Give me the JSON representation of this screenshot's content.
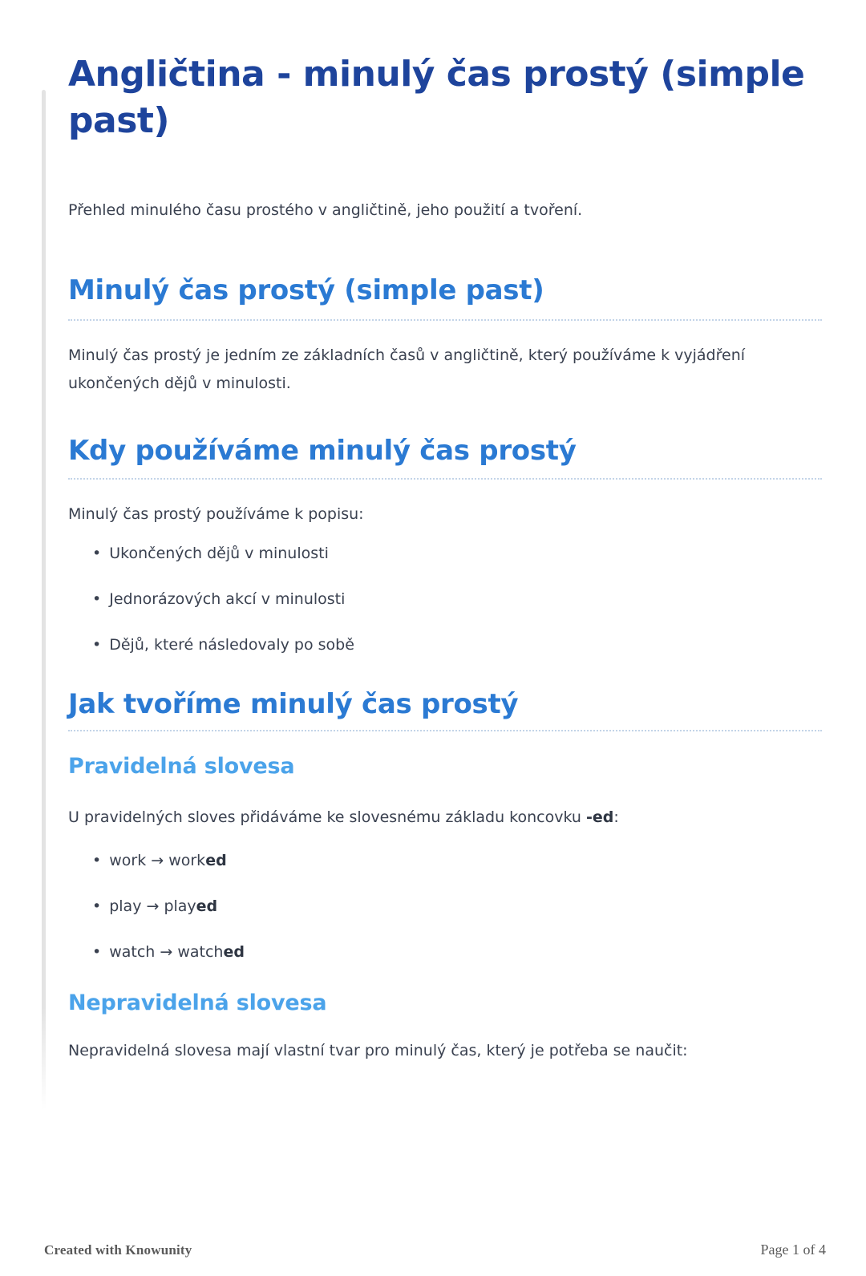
{
  "document": {
    "title": "Angličtina - minulý čas prostý (simple past)",
    "intro": "Přehled minulého času prostého v angličtině, jeho použití a tvoření."
  },
  "section1": {
    "heading": "Minulý čas prostý (simple past)",
    "body": "Minulý čas prostý je jedním ze základních časů v angličtině, který používáme k vyjádření ukončených dějů v minulosti."
  },
  "section2": {
    "heading": "Kdy používáme minulý čas prostý",
    "body": "Minulý čas prostý používáme k popisu:",
    "bullets": [
      "Ukončených dějů v minulosti",
      "Jednorázových akcí v minulosti",
      "Dějů, které následovaly po sobě"
    ]
  },
  "section3": {
    "heading": "Jak tvoříme minulý čas prostý",
    "regular": {
      "heading": "Pravidelná slovesa",
      "body_prefix": "U pravidelných sloves přidáváme ke slovesnému základu koncovku ",
      "body_bold": "-ed",
      "body_suffix": ":",
      "examples": [
        {
          "base": "work → work",
          "suffix": "ed"
        },
        {
          "base": "play → play",
          "suffix": "ed"
        },
        {
          "base": "watch → watch",
          "suffix": "ed"
        }
      ]
    },
    "irregular": {
      "heading": "Nepravidelná slovesa",
      "body": "Nepravidelná slovesa mají vlastní tvar pro minulý čas, který je potřeba se naučit:"
    }
  },
  "footer": {
    "left": "Created with Knowunity",
    "right": "Page 1 of 4"
  },
  "colors": {
    "title_blue": "#1e449c",
    "heading_blue": "#2b7ad3",
    "subheading_blue": "#4ba3ea",
    "body_text": "#3a4150",
    "dotted_rule": "#c3d4e8",
    "accent_line": "#e3e3e3",
    "footer_gray": "#5a5a5a"
  }
}
